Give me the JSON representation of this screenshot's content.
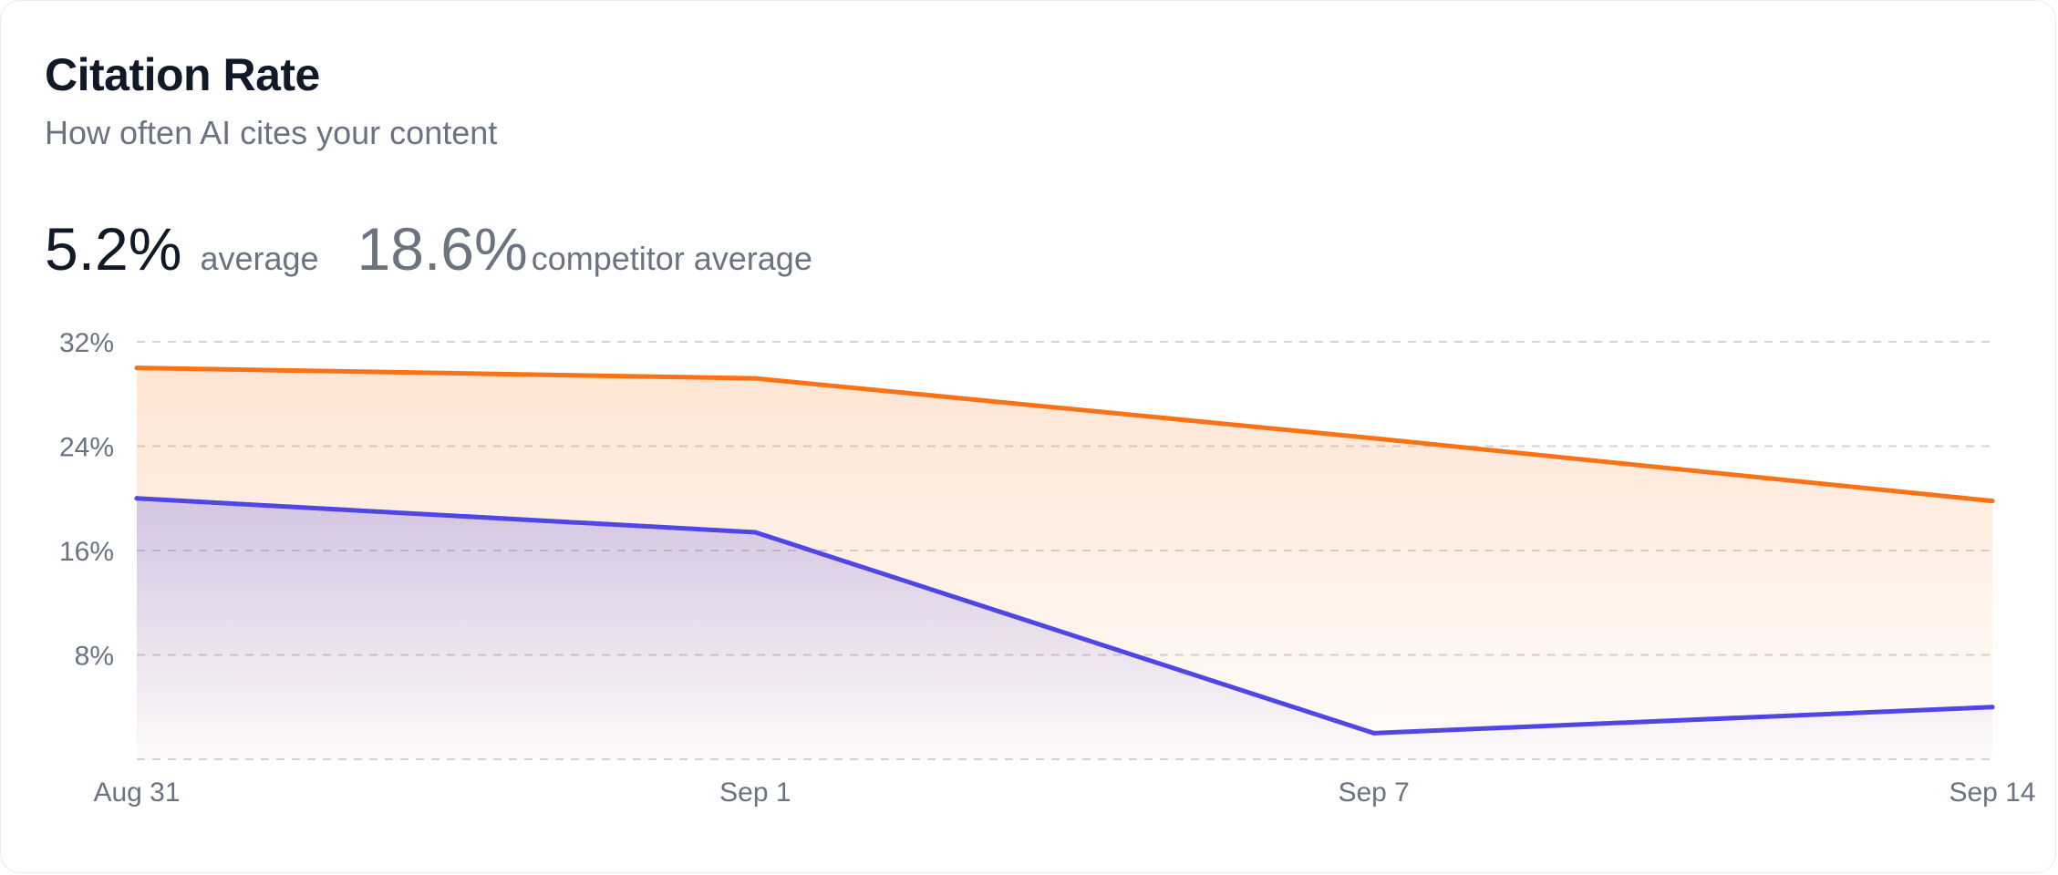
{
  "card": {
    "title": "Citation Rate",
    "subtitle": "How often AI cites your content"
  },
  "stats": {
    "average_value": "5.2%",
    "average_label": "average",
    "competitor_value": "18.6%",
    "competitor_label": "competitor average"
  },
  "chart_data": {
    "type": "area",
    "categories": [
      "Aug 31",
      "Sep 1",
      "Sep 7",
      "Sep 14"
    ],
    "y_ticks": [
      "32%",
      "24%",
      "16%",
      "8%"
    ],
    "y_tick_values": [
      32,
      24,
      16,
      8
    ],
    "ylim": [
      0,
      32
    ],
    "grid": true,
    "grid_style": "dashed",
    "series": [
      {
        "values": [
          30.0,
          29.2,
          24.6,
          19.8
        ],
        "color": "#f97316"
      },
      {
        "values": [
          20.0,
          17.4,
          2.0,
          4.0
        ],
        "color": "#4f46e5"
      }
    ]
  }
}
